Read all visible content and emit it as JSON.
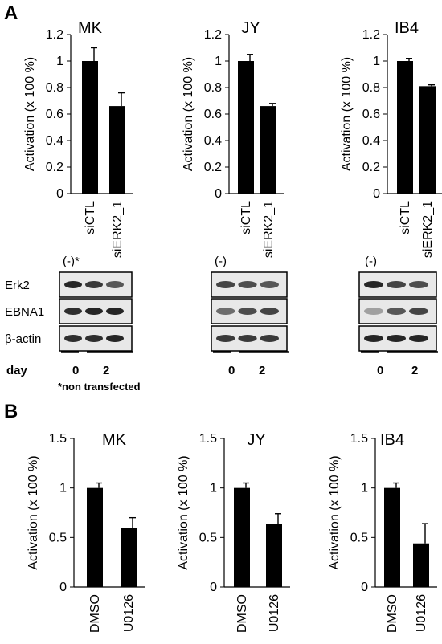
{
  "figure": {
    "panel_a": "A",
    "panel_b": "B"
  },
  "chart_data": [
    {
      "type": "bar",
      "panel": "A",
      "title": "MK",
      "ylabel": "Activation (x 100 %)",
      "categories": [
        "siCTL",
        "siERK2_1"
      ],
      "values": [
        1.0,
        0.66
      ],
      "errors": [
        0.1,
        0.1
      ],
      "ylim": [
        0,
        1.2
      ],
      "yticks": [
        "0",
        "0.2",
        "0.4",
        "0.6",
        "0.8",
        "1",
        "1.2"
      ],
      "grid": false,
      "legend": "none"
    },
    {
      "type": "bar",
      "panel": "A",
      "title": "JY",
      "ylabel": "Activation (x 100 %)",
      "categories": [
        "siCTL",
        "siERK2_1"
      ],
      "values": [
        1.0,
        0.66
      ],
      "errors": [
        0.05,
        0.02
      ],
      "ylim": [
        0,
        1.2
      ],
      "yticks": [
        "0",
        "0.2",
        "0.4",
        "0.6",
        "0.8",
        "1",
        "1.2"
      ],
      "grid": false,
      "legend": "none"
    },
    {
      "type": "bar",
      "panel": "A",
      "title": "IB4",
      "ylabel": "Activation (x 100 %)",
      "categories": [
        "siCTL",
        "siERK2_1"
      ],
      "values": [
        1.0,
        0.81
      ],
      "errors": [
        0.02,
        0.01
      ],
      "ylim": [
        0,
        1.2
      ],
      "yticks": [
        "0",
        "0.2",
        "0.4",
        "0.6",
        "0.8",
        "1",
        "1.2"
      ],
      "grid": false,
      "legend": "none"
    },
    {
      "type": "bar",
      "panel": "B",
      "title": "MK",
      "ylabel": "Activation (x 100 %)",
      "categories": [
        "DMSO",
        "U0126"
      ],
      "values": [
        1.0,
        0.6
      ],
      "errors": [
        0.05,
        0.1
      ],
      "ylim": [
        0,
        1.5
      ],
      "yticks": [
        "0",
        "0.5",
        "1",
        "1.5"
      ],
      "grid": false,
      "legend": "none"
    },
    {
      "type": "bar",
      "panel": "B",
      "title": "JY",
      "ylabel": "Activation (x 100 %)",
      "categories": [
        "DMSO",
        "U0126"
      ],
      "values": [
        1.0,
        0.64
      ],
      "errors": [
        0.05,
        0.1
      ],
      "ylim": [
        0,
        1.5
      ],
      "yticks": [
        "0",
        "0.5",
        "1",
        "1.5"
      ],
      "grid": false,
      "legend": "none"
    },
    {
      "type": "bar",
      "panel": "B",
      "title": "IB4",
      "ylabel": "Activation (x 100 %)",
      "categories": [
        "DMSO",
        "U0126"
      ],
      "values": [
        1.0,
        0.44
      ],
      "errors": [
        0.05,
        0.2
      ],
      "ylim": [
        0,
        1.5
      ],
      "yticks": [
        "0",
        "0.5",
        "1",
        "1.5"
      ],
      "grid": false,
      "legend": "none"
    }
  ],
  "blots": [
    {
      "cell_line": "MK",
      "control_label": "(-)*",
      "rows": [
        "Erk2",
        "EBNA1",
        "β-actin"
      ],
      "day_label": "day",
      "days": [
        "0",
        "2"
      ],
      "note": "*non transfected"
    },
    {
      "cell_line": "JY",
      "control_label": "(-)",
      "rows": [],
      "day_label": "",
      "days": [
        "0",
        "2"
      ],
      "note": ""
    },
    {
      "cell_line": "IB4",
      "control_label": "(-)",
      "rows": [],
      "day_label": "",
      "days": [
        "0",
        "2"
      ],
      "note": ""
    }
  ]
}
